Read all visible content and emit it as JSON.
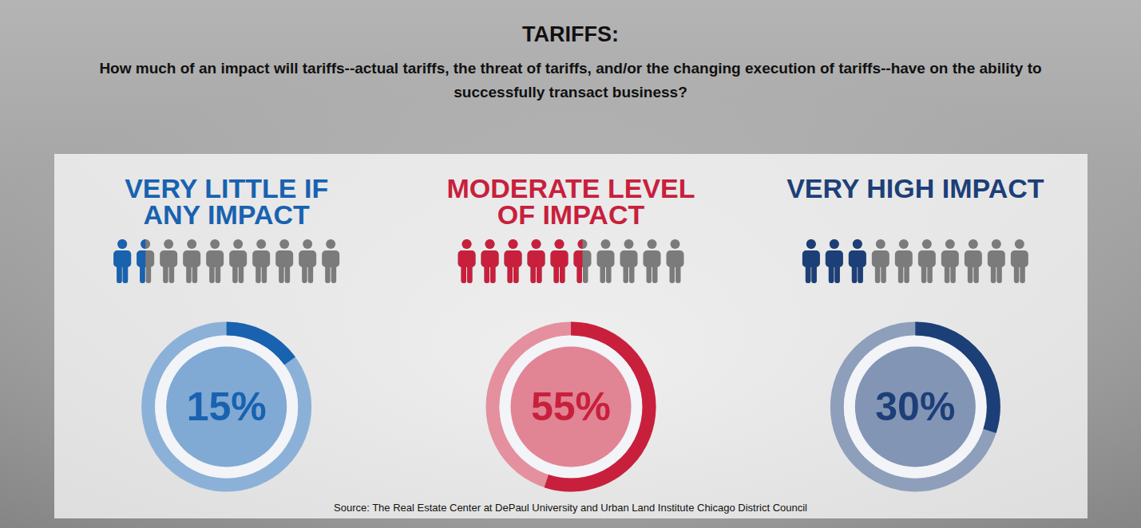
{
  "chart_data": {
    "type": "donut",
    "title": "TARIFFS:",
    "subtitle": "How much of an impact will tariffs--actual tariffs, the threat of tariffs, and/or the changing execution of tariffs--have on the ability to successfully transact business?",
    "categories": [
      "VERY LITTLE IF ANY IMPACT",
      "MODERATE LEVEL OF IMPACT",
      "VERY HIGH IMPACT"
    ],
    "values": [
      15,
      55,
      30
    ],
    "value_labels": [
      "15%",
      "55%",
      "30%"
    ],
    "colors": [
      "#1862b0",
      "#c8203c",
      "#1d3f78"
    ],
    "data_labels": true,
    "source": "Source: The Real Estate Center at DePaul University and Urban Land Institute Chicago District Council"
  }
}
